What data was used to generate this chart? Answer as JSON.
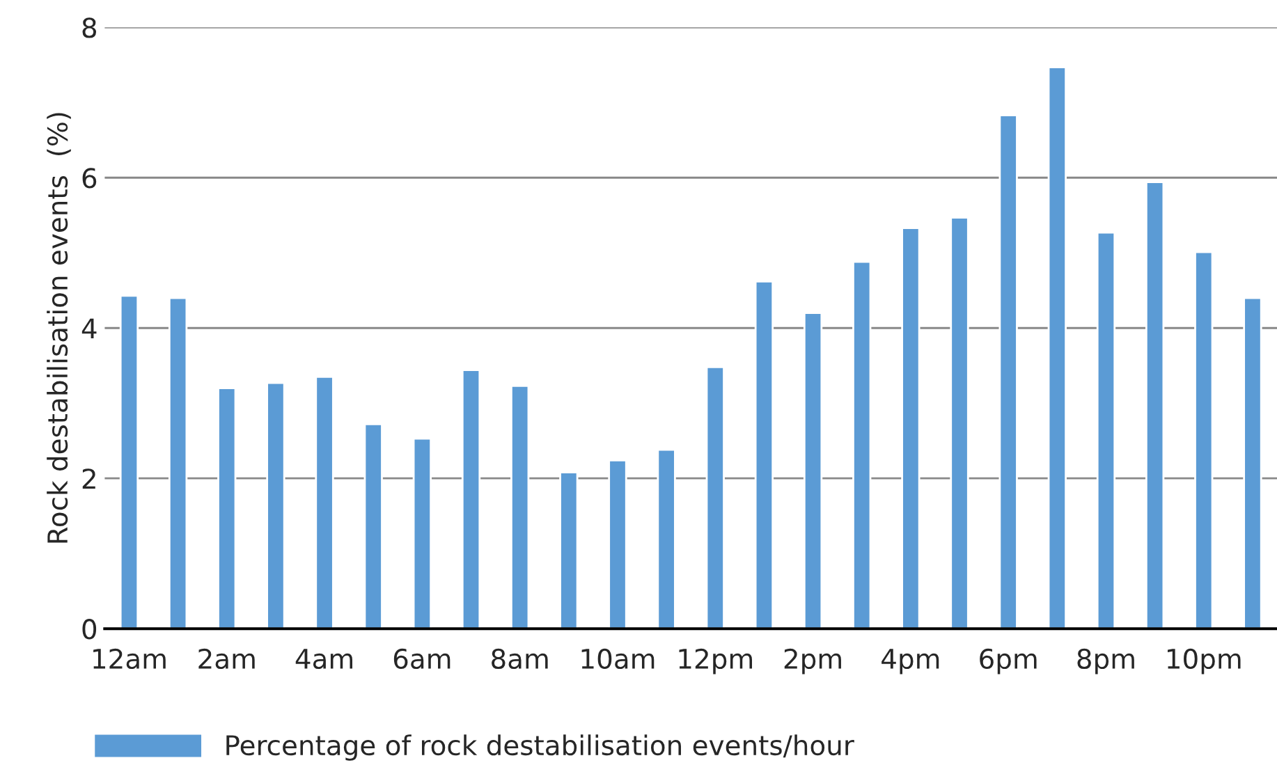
{
  "chart_data": {
    "type": "bar",
    "ylabel": "Rock destabilisation events  (%)",
    "categories": [
      "12am",
      null,
      "2am",
      null,
      "4am",
      null,
      "6am",
      null,
      "8am",
      null,
      "10am",
      null,
      "12pm",
      null,
      "2pm",
      null,
      "4pm",
      null,
      "6pm",
      null,
      "8pm",
      null,
      "10pm",
      null
    ],
    "series": [
      {
        "name": "Percentage of rock destabilisation events/hour",
        "color": "#5b9bd5",
        "values": [
          4.43,
          4.4,
          3.2,
          3.27,
          3.35,
          2.72,
          2.53,
          3.44,
          3.23,
          2.08,
          2.24,
          2.38,
          3.48,
          4.62,
          4.2,
          4.88,
          5.33,
          5.47,
          6.83,
          7.47,
          5.27,
          5.94,
          5.01,
          4.4
        ]
      }
    ],
    "ylim": [
      0,
      8
    ],
    "yticks": [
      0,
      2,
      4,
      6,
      8
    ],
    "grid": "y",
    "legend": "bottom"
  }
}
